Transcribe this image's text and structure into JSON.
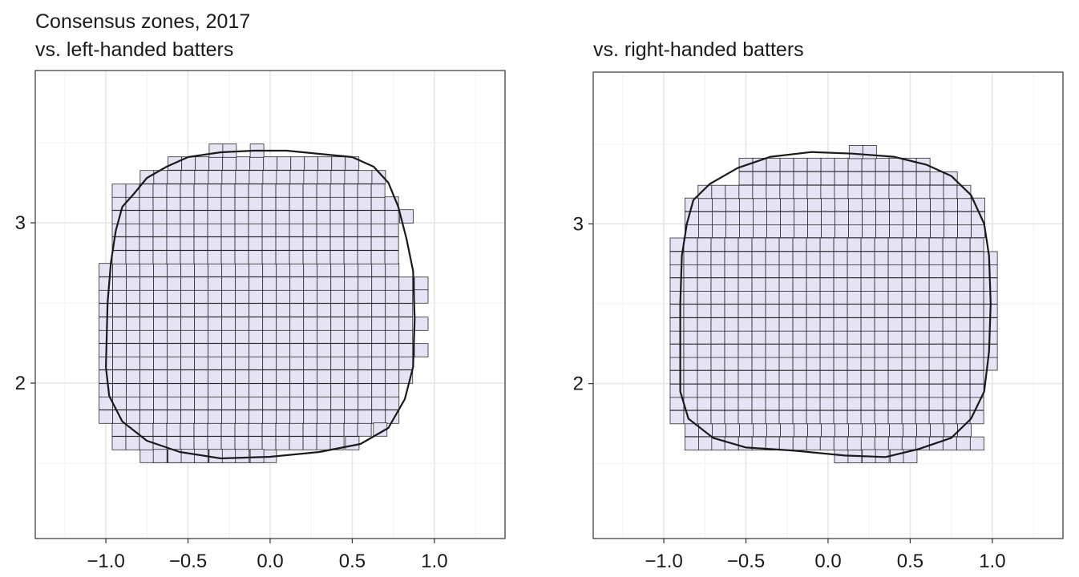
{
  "chart_data": [
    {
      "type": "heatmap",
      "title": "Consensus zones, 2017",
      "subtitle": "vs. left-handed batters",
      "xlabel": "",
      "ylabel": "",
      "xlim": [
        -1.43,
        1.43
      ],
      "ylim": [
        1.03,
        3.95
      ],
      "x_ticks": [
        -1.0,
        -0.5,
        0.0,
        0.5,
        1.0
      ],
      "x_tick_labels": [
        "−1.0",
        "−0.5",
        "0.0",
        "0.5",
        "1.0"
      ],
      "y_ticks": [
        2,
        3
      ],
      "y_tick_labels": [
        "2",
        "3"
      ],
      "grid": true,
      "tile_size": [
        0.083,
        0.083
      ],
      "tile_rows": [
        {
          "y": 1.545,
          "x_min": -0.75,
          "x_max": 0.0
        },
        {
          "y": 1.625,
          "x_min": -0.92,
          "x_max": 0.42
        },
        {
          "y": 1.71,
          "x_min": -0.92,
          "x_max": 0.58
        },
        {
          "y": 1.79,
          "x_min": -1.0,
          "x_max": 0.75
        },
        {
          "y": 1.875,
          "x_min": -1.0,
          "x_max": 0.75
        },
        {
          "y": 1.955,
          "x_min": -1.0,
          "x_max": 0.75
        },
        {
          "y": 2.04,
          "x_min": -1.0,
          "x_max": 0.83
        },
        {
          "y": 2.125,
          "x_min": -1.0,
          "x_max": 0.83
        },
        {
          "y": 2.205,
          "x_min": -1.0,
          "x_max": 0.83
        },
        {
          "y": 2.29,
          "x_min": -1.0,
          "x_max": 0.83
        },
        {
          "y": 2.37,
          "x_min": -1.0,
          "x_max": 0.83
        },
        {
          "y": 2.455,
          "x_min": -1.0,
          "x_max": 0.83
        },
        {
          "y": 2.54,
          "x_min": -1.0,
          "x_max": 0.83
        },
        {
          "y": 2.62,
          "x_min": -1.0,
          "x_max": 0.83
        },
        {
          "y": 2.705,
          "x_min": -1.0,
          "x_max": 0.75
        },
        {
          "y": 2.785,
          "x_min": -0.92,
          "x_max": 0.75
        },
        {
          "y": 2.87,
          "x_min": -0.92,
          "x_max": 0.75
        },
        {
          "y": 2.955,
          "x_min": -0.92,
          "x_max": 0.75
        },
        {
          "y": 3.035,
          "x_min": -0.92,
          "x_max": 0.75
        },
        {
          "y": 3.12,
          "x_min": -0.92,
          "x_max": 0.75
        },
        {
          "y": 3.2,
          "x_min": -0.92,
          "x_max": 0.67
        },
        {
          "y": 3.285,
          "x_min": -0.75,
          "x_max": 0.67
        },
        {
          "y": 3.37,
          "x_min": -0.58,
          "x_max": 0.5
        },
        {
          "y": 3.45,
          "x_min": -0.33,
          "x_max": -0.25
        }
      ],
      "extra_tiles": [
        {
          "x": -0.08,
          "y": 3.45
        },
        {
          "x": 0.83,
          "y": 3.04
        },
        {
          "x": 0.92,
          "y": 2.62
        },
        {
          "x": 0.92,
          "y": 2.54
        },
        {
          "x": 0.92,
          "y": 2.37
        },
        {
          "x": 0.92,
          "y": 2.205
        },
        {
          "x": -0.67,
          "y": 1.545
        },
        {
          "x": -0.58,
          "y": 1.545
        },
        {
          "x": -0.5,
          "y": 1.545
        },
        {
          "x": -0.42,
          "y": 1.545
        },
        {
          "x": -0.33,
          "y": 1.545
        },
        {
          "x": -0.25,
          "y": 1.545
        },
        {
          "x": -0.17,
          "y": 1.545
        },
        {
          "x": -0.08,
          "y": 1.545
        },
        {
          "x": 0.5,
          "y": 1.625
        },
        {
          "x": 0.67,
          "y": 1.71
        }
      ],
      "contour": [
        [
          -1.0,
          2.1
        ],
        [
          -0.99,
          2.5
        ],
        [
          -0.97,
          2.75
        ],
        [
          -0.94,
          2.95
        ],
        [
          -0.9,
          3.1
        ],
        [
          -0.83,
          3.18
        ],
        [
          -0.75,
          3.28
        ],
        [
          -0.63,
          3.35
        ],
        [
          -0.5,
          3.41
        ],
        [
          -0.3,
          3.44
        ],
        [
          -0.1,
          3.45
        ],
        [
          0.1,
          3.45
        ],
        [
          0.3,
          3.43
        ],
        [
          0.5,
          3.41
        ],
        [
          0.63,
          3.35
        ],
        [
          0.72,
          3.25
        ],
        [
          0.78,
          3.1
        ],
        [
          0.83,
          2.9
        ],
        [
          0.87,
          2.7
        ],
        [
          0.88,
          2.4
        ],
        [
          0.87,
          2.1
        ],
        [
          0.82,
          1.9
        ],
        [
          0.72,
          1.72
        ],
        [
          0.55,
          1.62
        ],
        [
          0.3,
          1.57
        ],
        [
          0.0,
          1.54
        ],
        [
          -0.3,
          1.53
        ],
        [
          -0.55,
          1.57
        ],
        [
          -0.75,
          1.64
        ],
        [
          -0.9,
          1.76
        ],
        [
          -0.98,
          1.92
        ],
        [
          -1.0,
          2.1
        ]
      ]
    },
    {
      "type": "heatmap",
      "title": "",
      "subtitle": "vs. right-handed batters",
      "xlabel": "",
      "ylabel": "",
      "xlim": [
        -1.43,
        1.43
      ],
      "ylim": [
        1.03,
        3.95
      ],
      "x_ticks": [
        -1.0,
        -0.5,
        0.0,
        0.5,
        1.0
      ],
      "x_tick_labels": [
        "−1.0",
        "−0.5",
        "0.0",
        "0.5",
        "1.0"
      ],
      "y_ticks": [
        2,
        3
      ],
      "y_tick_labels": [
        "2",
        "3"
      ],
      "grid": true,
      "tile_size": [
        0.083,
        0.083
      ],
      "tile_rows": [
        {
          "y": 1.545,
          "x_min": 0.08,
          "x_max": 0.17
        },
        {
          "y": 1.625,
          "x_min": -0.67,
          "x_max": 0.92
        },
        {
          "y": 1.71,
          "x_min": -0.83,
          "x_max": 0.83
        },
        {
          "y": 1.79,
          "x_min": -0.92,
          "x_max": 0.92
        },
        {
          "y": 1.875,
          "x_min": -0.92,
          "x_max": 0.92
        },
        {
          "y": 1.955,
          "x_min": -0.92,
          "x_max": 0.92
        },
        {
          "y": 2.04,
          "x_min": -0.92,
          "x_max": 0.92
        },
        {
          "y": 2.125,
          "x_min": -0.92,
          "x_max": 1.0
        },
        {
          "y": 2.205,
          "x_min": -0.92,
          "x_max": 1.0
        },
        {
          "y": 2.29,
          "x_min": -0.92,
          "x_max": 1.0
        },
        {
          "y": 2.37,
          "x_min": -0.92,
          "x_max": 1.0
        },
        {
          "y": 2.455,
          "x_min": -0.92,
          "x_max": 1.0
        },
        {
          "y": 2.54,
          "x_min": -0.92,
          "x_max": 1.0
        },
        {
          "y": 2.62,
          "x_min": -0.92,
          "x_max": 1.0
        },
        {
          "y": 2.705,
          "x_min": -0.92,
          "x_max": 1.0
        },
        {
          "y": 2.785,
          "x_min": -0.92,
          "x_max": 1.0
        },
        {
          "y": 2.87,
          "x_min": -0.92,
          "x_max": 0.92
        },
        {
          "y": 2.955,
          "x_min": -0.83,
          "x_max": 0.92
        },
        {
          "y": 3.035,
          "x_min": -0.83,
          "x_max": 0.92
        },
        {
          "y": 3.12,
          "x_min": -0.83,
          "x_max": 0.92
        },
        {
          "y": 3.2,
          "x_min": -0.75,
          "x_max": 0.83
        },
        {
          "y": 3.285,
          "x_min": -0.5,
          "x_max": 0.75
        },
        {
          "y": 3.37,
          "x_min": -0.5,
          "x_max": 0.58
        },
        {
          "y": 3.45,
          "x_min": 0.17,
          "x_max": 0.25
        }
      ],
      "extra_tiles": [
        {
          "x": 0.25,
          "y": 1.545
        },
        {
          "x": 0.33,
          "y": 1.545
        },
        {
          "x": 0.42,
          "y": 1.545
        },
        {
          "x": 0.5,
          "y": 1.545
        },
        {
          "x": -0.75,
          "y": 1.625
        },
        {
          "x": -0.83,
          "y": 1.625
        }
      ],
      "contour": [
        [
          -0.9,
          2.1
        ],
        [
          -0.9,
          2.5
        ],
        [
          -0.89,
          2.8
        ],
        [
          -0.86,
          3.0
        ],
        [
          -0.82,
          3.15
        ],
        [
          -0.72,
          3.25
        ],
        [
          -0.55,
          3.35
        ],
        [
          -0.35,
          3.42
        ],
        [
          -0.1,
          3.45
        ],
        [
          0.15,
          3.44
        ],
        [
          0.4,
          3.42
        ],
        [
          0.6,
          3.37
        ],
        [
          0.75,
          3.3
        ],
        [
          0.87,
          3.18
        ],
        [
          0.95,
          3.0
        ],
        [
          0.98,
          2.8
        ],
        [
          0.99,
          2.5
        ],
        [
          0.98,
          2.2
        ],
        [
          0.95,
          1.95
        ],
        [
          0.87,
          1.78
        ],
        [
          0.75,
          1.66
        ],
        [
          0.55,
          1.59
        ],
        [
          0.35,
          1.54
        ],
        [
          0.1,
          1.55
        ],
        [
          -0.2,
          1.58
        ],
        [
          -0.5,
          1.6
        ],
        [
          -0.7,
          1.66
        ],
        [
          -0.85,
          1.78
        ],
        [
          -0.9,
          1.95
        ],
        [
          -0.9,
          2.1
        ]
      ]
    }
  ]
}
